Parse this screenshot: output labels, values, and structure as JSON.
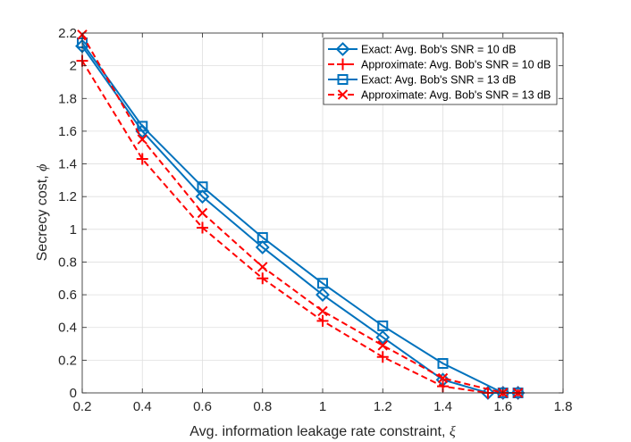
{
  "chart_data": {
    "type": "line",
    "title": "",
    "xlabel": "Avg. information leakage rate constraint, ",
    "xlabel_symbol": "ξ",
    "ylabel": "Secrecy cost, ",
    "ylabel_symbol": "ϕ",
    "xlim": [
      0.2,
      1.8
    ],
    "ylim": [
      0,
      2.2
    ],
    "xticks": [
      0.2,
      0.4,
      0.6,
      0.8,
      1.0,
      1.2,
      1.4,
      1.6,
      1.8
    ],
    "xtick_labels": [
      "0.2",
      "0.4",
      "0.6",
      "0.8",
      "1",
      "1.2",
      "1.4",
      "1.6",
      "1.8"
    ],
    "yticks": [
      0,
      0.2,
      0.4,
      0.6,
      0.8,
      1.0,
      1.2,
      1.4,
      1.6,
      1.8,
      2.0,
      2.2
    ],
    "ytick_labels": [
      "0",
      "0.2",
      "0.4",
      "0.6",
      "0.8",
      "1",
      "1.2",
      "1.4",
      "1.6",
      "1.8",
      "2",
      "2.2"
    ],
    "grid": true,
    "legend_position": "top-right",
    "series": [
      {
        "name": "Exact: Avg. Bob's SNR = 10 dB",
        "color": "#0072BD",
        "line": "solid",
        "marker": "diamond",
        "x": [
          0.2,
          0.4,
          0.6,
          0.8,
          1.0,
          1.2,
          1.4,
          1.55,
          1.6,
          1.65
        ],
        "y": [
          2.12,
          1.6,
          1.2,
          0.89,
          0.6,
          0.34,
          0.08,
          0.0,
          0.0,
          0.0
        ]
      },
      {
        "name": "Approximate: Avg. Bob's SNR = 10 dB",
        "color": "#FF0000",
        "line": "dashed",
        "marker": "plus",
        "x": [
          0.2,
          0.4,
          0.6,
          0.8,
          1.0,
          1.2,
          1.4,
          1.55,
          1.6,
          1.65
        ],
        "y": [
          2.03,
          1.43,
          1.01,
          0.7,
          0.44,
          0.22,
          0.04,
          0.0,
          0.0,
          0.0
        ]
      },
      {
        "name": "Exact: Avg. Bob's SNR = 13 dB",
        "color": "#0072BD",
        "line": "solid",
        "marker": "square",
        "x": [
          0.2,
          0.4,
          0.6,
          0.8,
          1.0,
          1.2,
          1.4,
          1.6,
          1.65
        ],
        "y": [
          2.14,
          1.63,
          1.26,
          0.95,
          0.67,
          0.41,
          0.18,
          0.0,
          0.0
        ]
      },
      {
        "name": "Approximate: Avg. Bob's SNR = 13 dB",
        "color": "#FF0000",
        "line": "dashed",
        "marker": "x",
        "x": [
          0.2,
          0.4,
          0.6,
          0.8,
          1.0,
          1.2,
          1.4,
          1.6,
          1.65
        ],
        "y": [
          2.19,
          1.55,
          1.1,
          0.77,
          0.5,
          0.29,
          0.09,
          0.0,
          0.0
        ]
      }
    ]
  }
}
